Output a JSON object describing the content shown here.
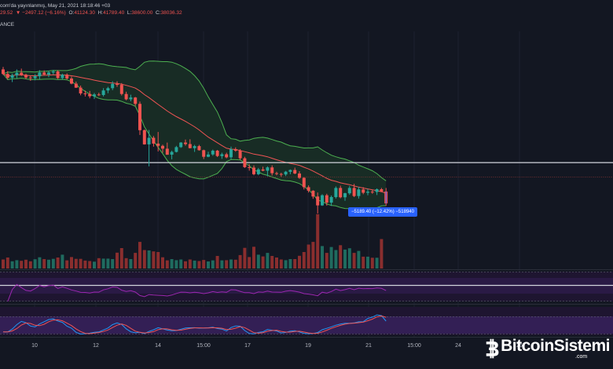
{
  "header": {
    "info": "com'da yayınlanmış, May 21, 2021 18:18:46 +03",
    "ohlc": [
      {
        "label": "",
        "value": "29.52"
      },
      {
        "label": "",
        "value": "▼ −2497.12 (−6.16%)"
      },
      {
        "label": "O:",
        "value": "41124.30"
      },
      {
        "label": "H:",
        "value": "41789.40"
      },
      {
        "label": "L:",
        "value": "38600.00"
      },
      {
        "label": "C:",
        "value": "38036.32"
      }
    ],
    "source": "ANCE"
  },
  "measure": {
    "label": "−5189.40 (−12.42%) −518940"
  },
  "x_axis": {
    "ticks": [
      "10",
      "12",
      "14",
      "15:00",
      "17",
      "19",
      "21",
      "15:00",
      "24",
      "26"
    ]
  },
  "watermark": {
    "name": "BitcoinSistemi",
    "domain": ".com"
  },
  "colors": {
    "background": "#131722",
    "up": "#26a69a",
    "down": "#ef5350",
    "basis": "#f05454",
    "band": "#4caf50",
    "band_fill": "#182c25",
    "rsi": "#9c27b0",
    "stoch_k": "#2196f3",
    "stoch_d": "#f05454",
    "measure": "#2962ff"
  },
  "chart_data": {
    "type": "candlestick",
    "candles": [
      [
        71.0,
        72.0,
        68.8,
        69.2
      ],
      [
        69.2,
        70.3,
        67.1,
        67.7
      ],
      [
        67.7,
        69.3,
        66.0,
        68.7
      ],
      [
        68.7,
        71.0,
        67.5,
        69.7
      ],
      [
        69.7,
        71.3,
        68.4,
        68.9
      ],
      [
        68.9,
        69.3,
        67.2,
        67.8
      ],
      [
        67.8,
        68.4,
        66.5,
        67.5
      ],
      [
        67.5,
        69.1,
        66.7,
        68.3
      ],
      [
        68.3,
        70.7,
        67.1,
        69.8
      ],
      [
        69.8,
        70.6,
        68.6,
        69.0
      ],
      [
        69.0,
        70.5,
        67.9,
        69.8
      ],
      [
        69.8,
        70.8,
        69.0,
        70.2
      ],
      [
        70.2,
        70.7,
        67.2,
        67.6
      ],
      [
        67.6,
        69.3,
        66.9,
        68.9
      ],
      [
        68.9,
        69.4,
        67.0,
        67.4
      ],
      [
        67.4,
        68.2,
        65.1,
        65.4
      ],
      [
        65.4,
        66.2,
        63.7,
        63.8
      ],
      [
        63.8,
        64.6,
        60.8,
        61.5
      ],
      [
        61.5,
        62.6,
        60.3,
        61.3
      ],
      [
        61.3,
        62.5,
        59.6,
        60.4
      ],
      [
        60.4,
        61.7,
        59.3,
        61.1
      ],
      [
        61.1,
        61.8,
        60.5,
        60.9
      ],
      [
        60.9,
        63.6,
        60.3,
        62.7
      ],
      [
        62.7,
        64.1,
        61.6,
        63.6
      ],
      [
        63.6,
        66.3,
        62.8,
        65.3
      ],
      [
        65.3,
        66.3,
        64.1,
        64.9
      ],
      [
        64.9,
        65.6,
        60.7,
        61.3
      ],
      [
        61.3,
        62.2,
        58.8,
        59.2
      ],
      [
        59.2,
        61.0,
        58.4,
        59.9
      ],
      [
        59.9,
        60.1,
        56.6,
        57.4
      ],
      [
        57.4,
        58.3,
        45.1,
        47.0
      ],
      [
        47.0,
        47.3,
        41.3,
        41.4
      ],
      [
        41.4,
        47.1,
        32.7,
        44.0
      ],
      [
        44.0,
        44.7,
        40.5,
        41.7
      ],
      [
        41.7,
        46.3,
        38.6,
        40.8
      ],
      [
        40.8,
        41.3,
        38.1,
        39.7
      ],
      [
        39.7,
        42.1,
        37.3,
        37.3
      ],
      [
        37.3,
        38.9,
        35.5,
        38.4
      ],
      [
        38.4,
        40.8,
        38.2,
        40.3
      ],
      [
        40.3,
        42.3,
        40.0,
        42.1
      ],
      [
        42.1,
        43.3,
        40.9,
        41.5
      ],
      [
        41.5,
        43.4,
        39.8,
        39.9
      ],
      [
        39.9,
        41.2,
        38.4,
        40.7
      ],
      [
        40.7,
        41.2,
        38.9,
        39.1
      ],
      [
        39.1,
        39.3,
        35.6,
        36.5
      ],
      [
        36.5,
        38.5,
        36.3,
        37.4
      ],
      [
        37.4,
        39.3,
        36.9,
        38.9
      ],
      [
        38.9,
        39.2,
        36.4,
        36.8
      ],
      [
        36.8,
        38.1,
        35.7,
        37.5
      ],
      [
        37.5,
        38.1,
        35.9,
        36.3
      ],
      [
        36.3,
        40.5,
        35.5,
        39.5
      ],
      [
        39.5,
        40.2,
        38.5,
        38.9
      ],
      [
        38.9,
        39.5,
        35.3,
        35.9
      ],
      [
        35.9,
        36.5,
        32.1,
        32.4
      ],
      [
        32.4,
        33.6,
        31.0,
        32.2
      ],
      [
        32.2,
        33.1,
        29.2,
        29.6
      ],
      [
        29.6,
        32.1,
        29.2,
        31.5
      ],
      [
        31.5,
        32.6,
        30.8,
        31.0
      ],
      [
        31.0,
        32.7,
        28.8,
        32.3
      ],
      [
        32.3,
        33.1,
        29.1,
        30.0
      ],
      [
        30.0,
        30.6,
        29.2,
        29.7
      ],
      [
        29.7,
        30.2,
        28.6,
        29.5
      ],
      [
        29.5,
        30.9,
        28.9,
        30.6
      ],
      [
        30.6,
        31.5,
        29.6,
        31.3
      ],
      [
        31.3,
        32.2,
        29.6,
        29.9
      ],
      [
        29.9,
        30.8,
        27.8,
        28.2
      ],
      [
        28.2,
        28.4,
        23.6,
        24.5
      ],
      [
        24.5,
        25.2,
        22.4,
        23.1
      ],
      [
        23.1,
        23.3,
        19.9,
        20.8
      ],
      [
        20.8,
        22.4,
        14.1,
        17.3
      ],
      [
        17.3,
        21.7,
        17.1,
        21.3
      ],
      [
        21.3,
        21.9,
        17.2,
        18.4
      ],
      [
        18.4,
        21.2,
        17.1,
        20.6
      ],
      [
        20.6,
        24.8,
        20.0,
        24.2
      ],
      [
        24.2,
        25.1,
        20.1,
        20.5
      ],
      [
        20.5,
        22.3,
        19.1,
        22.1
      ],
      [
        22.1,
        25.0,
        21.5,
        24.2
      ],
      [
        24.2,
        25.8,
        20.6,
        21.0
      ],
      [
        21.0,
        24.6,
        20.0,
        23.6
      ],
      [
        23.6,
        24.5,
        21.7,
        22.3
      ],
      [
        22.3,
        23.8,
        21.3,
        22.7
      ],
      [
        22.7,
        23.4,
        21.9,
        22.6
      ],
      [
        22.6,
        24.0,
        21.4,
        23.7
      ],
      [
        23.7,
        24.2,
        22.6,
        22.8
      ],
      [
        22.8,
        24.2,
        17.1,
        18.1
      ]
    ],
    "volume": [
      4.1,
      5.0,
      3.3,
      3.8,
      3.5,
      4.0,
      3.3,
      4.2,
      5.1,
      4.3,
      4.0,
      4.4,
      5.0,
      6.3,
      3.7,
      5.2,
      4.4,
      4.4,
      3.6,
      3.4,
      3.1,
      4.7,
      4.5,
      4.5,
      4.3,
      7.2,
      9.3,
      4.7,
      4.3,
      7.1,
      12.1,
      8.4,
      8.2,
      7.8,
      7.5,
      5.1,
      3.7,
      4.3,
      3.8,
      4.1,
      3.3,
      4.1,
      3.6,
      3.4,
      3.9,
      3.2,
      3.7,
      5.7,
      3.7,
      3.8,
      4.1,
      4.0,
      6.1,
      9.4,
      5.2,
      9.9,
      6.3,
      5.5,
      7.1,
      5.7,
      5.0,
      4.1,
      3.8,
      4.3,
      4.3,
      5.8,
      7.5,
      10.9,
      12.1,
      24.7,
      10.2,
      7.1,
      9.8,
      8.4,
      10.6,
      8.6,
      9.2,
      7.1,
      8.0,
      5.4,
      5.4,
      4.9,
      4.9,
      13.4
    ],
    "bollinger": {
      "period": 20,
      "stddev": 2
    },
    "horizontal_line": 34.2,
    "dotted_line": 28.5,
    "ylim": [
      -7,
      86
    ]
  }
}
